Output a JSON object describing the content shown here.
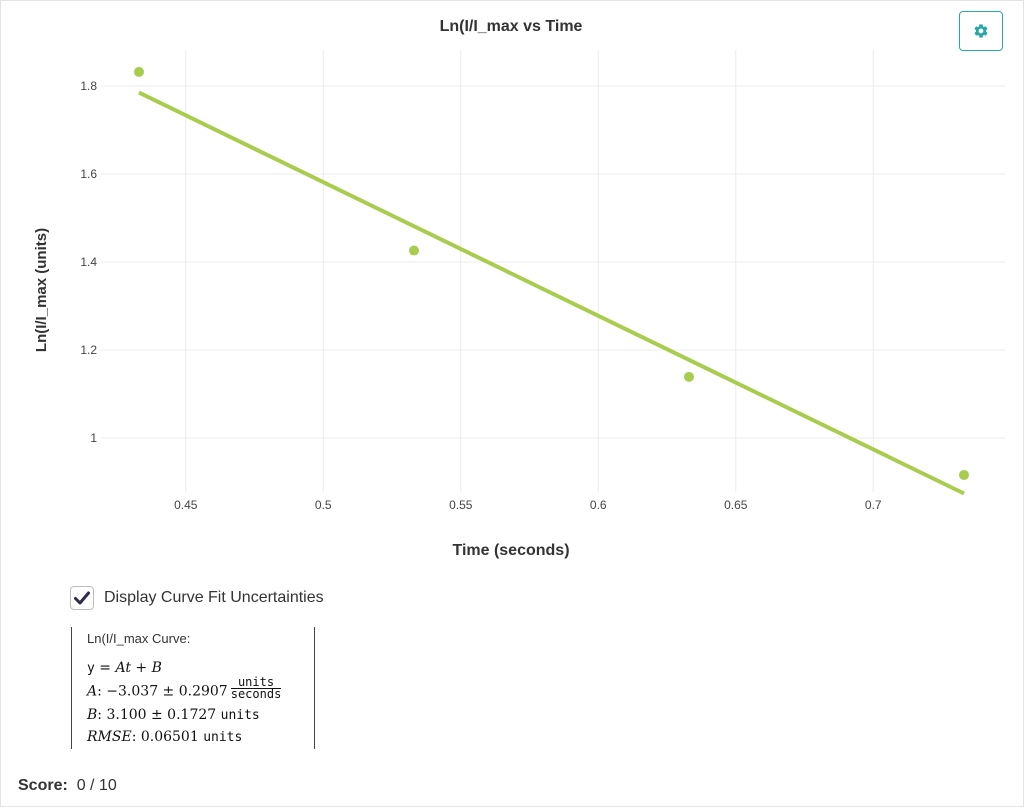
{
  "chart_data": {
    "type": "scatter",
    "title": "Ln(I/I_max vs Time",
    "xlabel": "Time (seconds)",
    "ylabel": "Ln(I/I_max (units)",
    "xlim": [
      0.41,
      0.76
    ],
    "ylim": [
      0.88,
      1.86
    ],
    "x_ticks": [
      0.45,
      0.5,
      0.55,
      0.6,
      0.65,
      0.7
    ],
    "x_tick_labels": [
      "0.45",
      "0.5",
      "0.55",
      "0.6",
      "0.65",
      "0.7"
    ],
    "y_ticks": [
      1.0,
      1.2,
      1.4,
      1.6,
      1.8
    ],
    "y_tick_labels": [
      "1",
      "1.2",
      "1.4",
      "1.6",
      "1.8"
    ],
    "grid": true,
    "color": "#a8cd4e",
    "series": [
      {
        "x": [
          0.433,
          0.533,
          0.633,
          0.733
        ],
        "y": [
          1.832,
          1.426,
          1.139,
          0.916
        ]
      }
    ],
    "fit_line": {
      "slope": -3.037,
      "intercept": 3.1,
      "x_range": [
        0.433,
        0.733
      ]
    }
  },
  "settings": {
    "icon": "gear-icon",
    "color": "#2aa8a8"
  },
  "uncertainty_toggle": {
    "label": "Display Curve Fit Uncertainties",
    "checked": true
  },
  "fit_summary": {
    "title": "Ln(I/I_max Curve:",
    "equation_y": "y",
    "equation_rhs": "= At + B",
    "a_label": "A",
    "a_value": ": −3.037 ± 0.2907",
    "a_unit_num": "units",
    "a_unit_den": "seconds",
    "b_label": "B",
    "b_value": ": 3.100 ± 0.1727",
    "b_unit": "units",
    "rmse_label": "RMSE",
    "rmse_value": ": 0.06501",
    "rmse_unit": "units"
  },
  "score": {
    "label": "Score:",
    "value": "0 / 10"
  }
}
